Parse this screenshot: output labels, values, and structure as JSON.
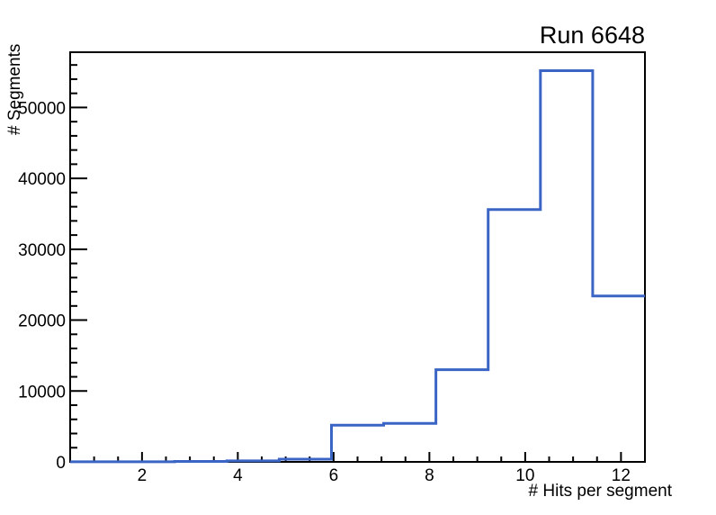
{
  "chart_data": {
    "type": "histogram-step",
    "title": "Run 6648",
    "xlabel": "# Hits per segment",
    "ylabel": "# Segments",
    "bin_edges": [
      0.5,
      1.591,
      2.682,
      3.773,
      4.864,
      5.955,
      7.045,
      8.136,
      9.227,
      10.318,
      11.409,
      12.5
    ],
    "counts": [
      10,
      15,
      60,
      150,
      380,
      5170,
      5430,
      13000,
      35600,
      55200,
      23400
    ],
    "xlim": [
      0.5,
      12.5
    ],
    "ylim": [
      0,
      57800
    ],
    "x_major_ticks": [
      2,
      4,
      6,
      8,
      10,
      12
    ],
    "x_minor_step": 0.5,
    "y_major_ticks": [
      0,
      10000,
      20000,
      30000,
      40000,
      50000
    ],
    "y_minor_step": 2000,
    "grid": false,
    "legend": "none",
    "line_color": "#3a65c5",
    "axis_color": "#000000",
    "background_color": "#ffffff"
  }
}
